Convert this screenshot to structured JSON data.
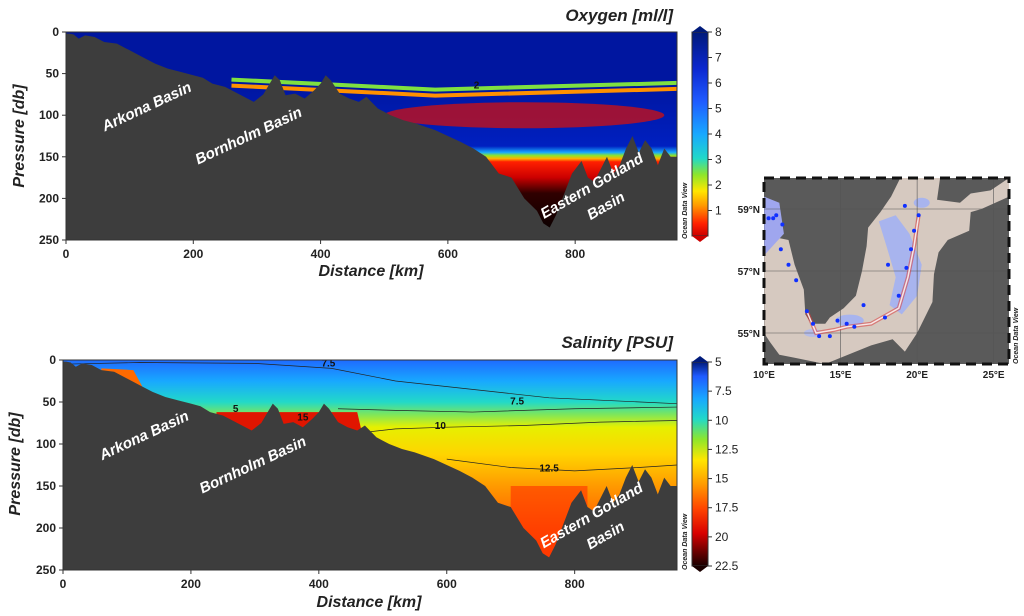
{
  "colors": {
    "seafloor": "#3d3d3d",
    "background": "#ffffff"
  },
  "chart_data": [
    {
      "type": "heatmap",
      "variable": "oxygen",
      "title": "Oxygen [ml/l]",
      "xlabel": "Distance [km]",
      "ylabel": "Pressure [db]",
      "xlim": [
        0,
        960
      ],
      "ylim": [
        250,
        0
      ],
      "x_ticks": [
        "0",
        "200",
        "400",
        "600",
        "800"
      ],
      "y_ticks": [
        "0",
        "50",
        "100",
        "150",
        "200",
        "250"
      ],
      "colorbar": {
        "min": 0,
        "max": 8,
        "ticks": [
          "1",
          "2",
          "3",
          "4",
          "5",
          "6",
          "7",
          "8"
        ]
      },
      "basins": [
        {
          "name": "Arkona Basin",
          "x": 130,
          "y": 95,
          "angle": -25
        },
        {
          "name": "Bornholm Basin",
          "x": 290,
          "y": 130,
          "angle": -25
        },
        {
          "name": "Eastern Gotland Basin",
          "x": 830,
          "y": 190,
          "angle": -30
        }
      ],
      "contours": [
        {
          "label": "2",
          "x": 645,
          "y": 68
        }
      ],
      "water_column_profile": [
        {
          "x": 0,
          "surface_oxygen": 7.8,
          "deep_oxygen": 7.5
        },
        {
          "x": 250,
          "surface_oxygen": 8,
          "deep_oxygen": 1
        },
        {
          "x": 450,
          "surface_oxygen": 8,
          "deep_oxygen": 0.5
        },
        {
          "x": 640,
          "surface_oxygen": 8,
          "deep_oxygen": 0.6
        },
        {
          "x": 960,
          "surface_oxygen": 8,
          "deep_oxygen": 0.3
        }
      ],
      "halocline_depth": [
        {
          "x": 260,
          "y": 62
        },
        {
          "x": 580,
          "y": 74
        },
        {
          "x": 960,
          "y": 66
        }
      ],
      "watermark": "Ocean Data View"
    },
    {
      "type": "heatmap",
      "variable": "salinity",
      "title": "Salinity [PSU]",
      "xlabel": "Distance [km]",
      "ylabel": "Pressure [db]",
      "xlim": [
        0,
        960
      ],
      "ylim": [
        250,
        0
      ],
      "x_ticks": [
        "0",
        "200",
        "400",
        "600",
        "800"
      ],
      "y_ticks": [
        "0",
        "50",
        "100",
        "150",
        "200",
        "250"
      ],
      "colorbar": {
        "min": 5,
        "max": 22.5,
        "ticks": [
          "5",
          "7.5",
          "10",
          "12.5",
          "15",
          "17.5",
          "20",
          "22.5"
        ]
      },
      "basins": [
        {
          "name": "Arkona Basin",
          "x": 130,
          "y": 95,
          "angle": -25
        },
        {
          "name": "Bornholm Basin",
          "x": 300,
          "y": 130,
          "angle": -25
        },
        {
          "name": "Eastern Gotland Basin",
          "x": 830,
          "y": 190,
          "angle": -30
        }
      ],
      "contours": [
        {
          "label": "7.5",
          "x": 415,
          "y": 8
        },
        {
          "label": "7.5",
          "x": 710,
          "y": 53
        },
        {
          "label": "10",
          "x": 590,
          "y": 82
        },
        {
          "label": "12.5",
          "x": 760,
          "y": 133
        },
        {
          "label": "15",
          "x": 375,
          "y": 72
        },
        {
          "label": "5",
          "x": 270,
          "y": 62
        }
      ],
      "watermark": "Ocean Data View"
    },
    {
      "type": "map",
      "x_ticks": [
        "10°E",
        "15°E",
        "20°E",
        "25°E"
      ],
      "y_ticks": [
        "59°N",
        "57°N",
        "55°N"
      ],
      "xlim": [
        10,
        26
      ],
      "ylim": [
        54,
        60
      ],
      "watermark": "Ocean Data View",
      "stations": [
        {
          "lon": 10.3,
          "lat": 58.7
        },
        {
          "lon": 10.6,
          "lat": 58.7
        },
        {
          "lon": 10.8,
          "lat": 58.8
        },
        {
          "lon": 11.2,
          "lat": 58.5
        },
        {
          "lon": 11.1,
          "lat": 57.7
        },
        {
          "lon": 11.6,
          "lat": 57.2
        },
        {
          "lon": 12.1,
          "lat": 56.7
        },
        {
          "lon": 12.8,
          "lat": 55.7
        },
        {
          "lon": 13.2,
          "lat": 55.3
        },
        {
          "lon": 13.6,
          "lat": 54.9
        },
        {
          "lon": 14.3,
          "lat": 54.9
        },
        {
          "lon": 14.8,
          "lat": 55.4
        },
        {
          "lon": 15.4,
          "lat": 55.3
        },
        {
          "lon": 15.9,
          "lat": 55.2
        },
        {
          "lon": 16.5,
          "lat": 55.9
        },
        {
          "lon": 17.9,
          "lat": 55.5
        },
        {
          "lon": 18.8,
          "lat": 56.2
        },
        {
          "lon": 19.3,
          "lat": 57.1
        },
        {
          "lon": 19.6,
          "lat": 57.7
        },
        {
          "lon": 19.8,
          "lat": 58.3
        },
        {
          "lon": 20.1,
          "lat": 58.8
        },
        {
          "lon": 19.2,
          "lat": 59.1
        },
        {
          "lon": 18.1,
          "lat": 57.2
        }
      ],
      "transect": [
        {
          "lon": 12.8,
          "lat": 55.7
        },
        {
          "lon": 13.4,
          "lat": 55.0
        },
        {
          "lon": 14.6,
          "lat": 55.1
        },
        {
          "lon": 15.4,
          "lat": 55.2
        },
        {
          "lon": 17.0,
          "lat": 55.3
        },
        {
          "lon": 18.8,
          "lat": 55.8
        },
        {
          "lon": 19.4,
          "lat": 56.8
        },
        {
          "lon": 19.8,
          "lat": 57.8
        },
        {
          "lon": 20.1,
          "lat": 58.8
        }
      ]
    }
  ]
}
